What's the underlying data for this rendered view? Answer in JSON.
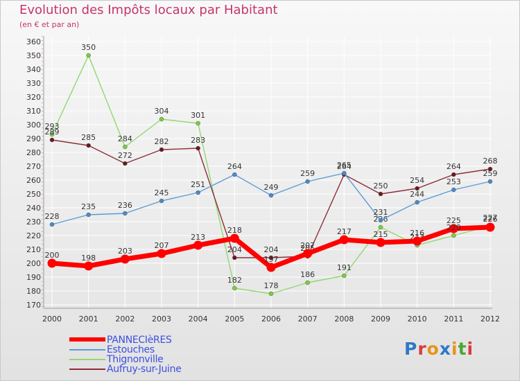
{
  "title": "Evolution des Impôts locaux par Habitant",
  "subtitle": "(en € et par an)",
  "logo": {
    "text": "Proxiti",
    "letter_colors": [
      "#2f78c8",
      "#d83c3c",
      "#e8941a",
      "#2f78c8",
      "#e8941a",
      "#4aa832",
      "#d83c3c"
    ]
  },
  "chart_data": {
    "type": "line",
    "x": [
      "2000",
      "2001",
      "2002",
      "2003",
      "2004",
      "2005",
      "2006",
      "2007",
      "2008",
      "2009",
      "2010",
      "2011",
      "2012"
    ],
    "ylim": [
      170,
      360
    ],
    "yticks": [
      "170",
      "180",
      "190",
      "200",
      "210",
      "220",
      "230",
      "240",
      "250",
      "260",
      "270",
      "280",
      "290",
      "300",
      "310",
      "320",
      "330",
      "340",
      "350",
      "360"
    ],
    "grid": true,
    "legend_position": "bottom-left",
    "series": [
      {
        "name": "Thignonville",
        "color": "#90d870",
        "marker": "#7ccf3c",
        "values": [
          293,
          350,
          284,
          304,
          301,
          182,
          178,
          186,
          191,
          226,
          213,
          220,
          227
        ],
        "labels": [
          "293",
          "350",
          "284",
          "304",
          "301",
          "182",
          "178",
          "186",
          "191",
          "226",
          "213",
          "",
          "227"
        ]
      },
      {
        "name": "Aufruy-sur-Juine",
        "color": "#8c2e3a",
        "marker": "#6a1820",
        "values": [
          289,
          285,
          272,
          282,
          283,
          204,
          204,
          205,
          264,
          250,
          254,
          264,
          268
        ],
        "labels": [
          "289",
          "285",
          "272",
          "282",
          "283",
          "204",
          "204",
          "205",
          "264",
          "250",
          "254",
          "264",
          "268"
        ]
      },
      {
        "name": "Estouches",
        "color": "#5a9bd5",
        "marker": "#4a8bc8",
        "values": [
          228,
          235,
          236,
          245,
          251,
          264,
          249,
          259,
          265,
          231,
          244,
          253,
          259
        ],
        "labels": [
          "228",
          "235",
          "236",
          "245",
          "251",
          "264",
          "249",
          "259",
          "265",
          "231",
          "244",
          "253",
          "259"
        ]
      },
      {
        "name": "PANNECIèRES",
        "color": "#ff0000",
        "marker": "#ff0000",
        "values": [
          200,
          198,
          203,
          207,
          213,
          218,
          197,
          207,
          217,
          215,
          216,
          225,
          226
        ],
        "labels": [
          "200",
          "198",
          "203",
          "207",
          "213",
          "218",
          "197",
          "207",
          "217",
          "215",
          "216",
          "225",
          "226"
        ]
      }
    ],
    "extra_labels": [
      {
        "x": "2011",
        "y": 220,
        "text": "220"
      }
    ]
  },
  "legend": [
    {
      "name": "PANNECIèRES",
      "color": "#ff0000"
    },
    {
      "name": "Estouches",
      "color": "#5a9bd5"
    },
    {
      "name": "Thignonville",
      "color": "#90d870"
    },
    {
      "name": "Aufruy-sur-Juine",
      "color": "#8c2e3a"
    }
  ]
}
